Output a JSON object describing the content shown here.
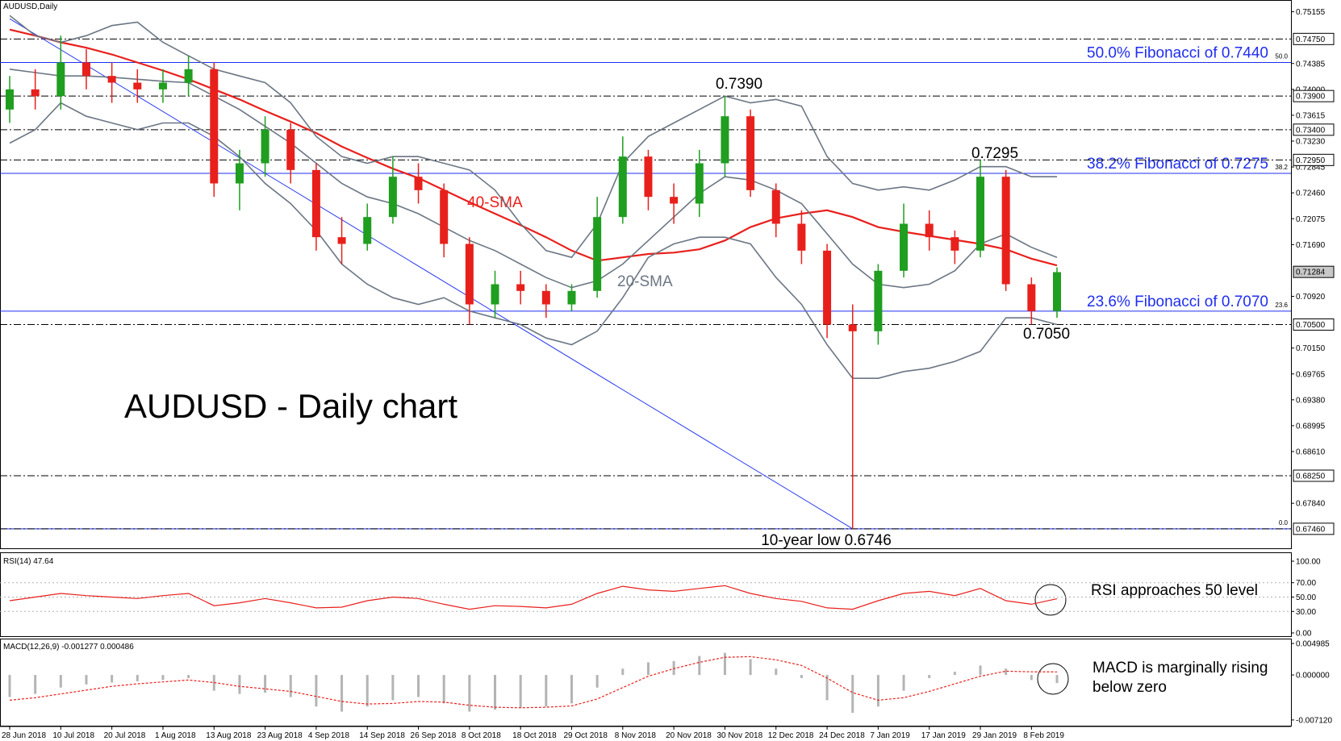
{
  "chart_data": {
    "type": "candlestick",
    "title": "AUDUSD - Daily chart",
    "symbol": "AUDUSD,Daily",
    "categories": [
      "28 Jun 2018",
      null,
      "10 Jul 2018",
      null,
      "20 Jul 2018",
      null,
      "1 Aug 2018",
      null,
      "13 Aug 2018",
      null,
      "23 Aug 2018",
      null,
      "4 Sep 2018",
      null,
      "14 Sep 2018",
      null,
      "26 Sep 2018",
      null,
      "8 Oct 2018",
      null,
      "18 Oct 2018",
      null,
      "29 Oct 2018",
      null,
      "8 Nov 2018",
      null,
      "20 Nov 2018",
      null,
      "30 Nov 2018",
      null,
      "12 Dec 2018",
      null,
      "24 Dec 2018",
      null,
      "7 Jan 2019",
      null,
      "17 Jan 2019",
      null,
      "29 Jan 2019",
      null,
      "8 Feb 2019",
      null
    ],
    "candles": {
      "open": [
        0.737,
        0.74,
        0.739,
        0.744,
        0.742,
        0.741,
        0.74,
        0.741,
        0.743,
        0.726,
        0.729,
        0.734,
        0.728,
        0.718,
        0.717,
        0.721,
        0.727,
        0.725,
        0.717,
        0.708,
        0.711,
        0.71,
        0.708,
        0.71,
        0.721,
        0.73,
        0.724,
        0.723,
        0.729,
        0.736,
        0.725,
        0.72,
        0.716,
        0.705,
        0.704,
        0.713,
        0.72,
        0.718,
        0.716,
        0.727,
        0.711,
        0.707
      ],
      "high": [
        0.742,
        0.743,
        0.748,
        0.746,
        0.744,
        0.743,
        0.743,
        0.745,
        0.744,
        0.731,
        0.736,
        0.735,
        0.729,
        0.721,
        0.723,
        0.73,
        0.729,
        0.726,
        0.718,
        0.713,
        0.713,
        0.711,
        0.711,
        0.724,
        0.733,
        0.731,
        0.726,
        0.731,
        0.739,
        0.737,
        0.726,
        0.722,
        0.717,
        0.708,
        0.714,
        0.723,
        0.722,
        0.719,
        0.7295,
        0.728,
        0.712,
        0.7135
      ],
      "low": [
        0.735,
        0.737,
        0.737,
        0.74,
        0.738,
        0.738,
        0.738,
        0.739,
        0.724,
        0.722,
        0.727,
        0.726,
        0.716,
        0.714,
        0.716,
        0.72,
        0.723,
        0.715,
        0.705,
        0.706,
        0.708,
        0.706,
        0.707,
        0.709,
        0.72,
        0.722,
        0.72,
        0.721,
        0.727,
        0.724,
        0.718,
        0.714,
        0.703,
        0.6746,
        0.702,
        0.712,
        0.716,
        0.714,
        0.715,
        0.71,
        0.705,
        0.706
      ],
      "close": [
        0.74,
        0.739,
        0.744,
        0.742,
        0.741,
        0.74,
        0.741,
        0.743,
        0.726,
        0.729,
        0.734,
        0.728,
        0.718,
        0.717,
        0.721,
        0.727,
        0.725,
        0.717,
        0.708,
        0.711,
        0.71,
        0.708,
        0.71,
        0.721,
        0.73,
        0.724,
        0.723,
        0.729,
        0.736,
        0.725,
        0.72,
        0.716,
        0.705,
        0.704,
        0.713,
        0.72,
        0.718,
        0.716,
        0.727,
        0.711,
        0.707,
        0.7128
      ]
    },
    "up_color": "#1f9e1f",
    "down_color": "#e8201c",
    "overlays": [
      {
        "name": "40-SMA",
        "color": "#e8201c",
        "values": [
          0.7489,
          0.748,
          0.747,
          0.7462,
          0.7452,
          0.744,
          0.7428,
          0.7415,
          0.74,
          0.7385,
          0.7368,
          0.7352,
          0.7335,
          0.7315,
          0.7298,
          0.7282,
          0.7268,
          0.725,
          0.7232,
          0.7215,
          0.7198,
          0.718,
          0.716,
          0.7145,
          0.715,
          0.7155,
          0.7157,
          0.7162,
          0.7175,
          0.7195,
          0.7208,
          0.7215,
          0.722,
          0.721,
          0.7195,
          0.7188,
          0.7182,
          0.7176,
          0.717,
          0.7162,
          0.7148,
          0.7138
        ]
      },
      {
        "name": "20-SMA",
        "color": "#6b7684",
        "values": [
          0.743,
          0.7425,
          0.742,
          0.742,
          0.7418,
          0.7415,
          0.7412,
          0.741,
          0.739,
          0.737,
          0.7345,
          0.732,
          0.729,
          0.726,
          0.724,
          0.723,
          0.7215,
          0.7195,
          0.7175,
          0.716,
          0.714,
          0.712,
          0.7105,
          0.7115,
          0.714,
          0.7175,
          0.721,
          0.7245,
          0.727,
          0.7265,
          0.725,
          0.723,
          0.7185,
          0.714,
          0.711,
          0.7105,
          0.711,
          0.713,
          0.717,
          0.7185,
          0.7165,
          0.715
        ]
      },
      {
        "color": "#6b7684",
        "values": [
          0.751,
          0.748,
          0.747,
          0.748,
          0.7495,
          0.75,
          0.747,
          0.745,
          0.743,
          0.742,
          0.741,
          0.738,
          0.733,
          0.73,
          0.729,
          0.73,
          0.73,
          0.729,
          0.728,
          0.725,
          0.72,
          0.716,
          0.715,
          0.72,
          0.729,
          0.733,
          0.735,
          0.737,
          0.739,
          0.738,
          0.7385,
          0.7375,
          0.73,
          0.726,
          0.725,
          0.7255,
          0.725,
          0.7265,
          0.7285,
          0.7285,
          0.727,
          0.727
        ]
      },
      {
        "color": "#6b7684",
        "values": [
          0.732,
          0.734,
          0.738,
          0.736,
          0.735,
          0.734,
          0.735,
          0.735,
          0.733,
          0.73,
          0.726,
          0.723,
          0.719,
          0.714,
          0.711,
          0.709,
          0.708,
          0.709,
          0.707,
          0.706,
          0.705,
          0.703,
          0.702,
          0.704,
          0.709,
          0.715,
          0.717,
          0.718,
          0.718,
          0.717,
          0.712,
          0.708,
          0.702,
          0.697,
          0.697,
          0.698,
          0.6985,
          0.6995,
          0.701,
          0.706,
          0.706,
          0.705
        ]
      }
    ],
    "trendline": {
      "x": [
        0,
        33
      ],
      "y": [
        0.7505,
        0.6746
      ],
      "color": "#2a3cf0"
    },
    "ylim": [
      0.6717,
      0.7533
    ],
    "yticks": [
      0.75155,
      0.74385,
      {
        "value": 0.74,
        "label": "0.74000"
      },
      0.73615,
      {
        "value": 0.7323,
        "label": "0.73230"
      },
      0.72845,
      {
        "value": 0.7246,
        "label": "0.72460"
      },
      0.72075,
      {
        "value": 0.7169,
        "label": "0.71690"
      },
      {
        "value": 0.7092,
        "label": "0.70920"
      },
      {
        "value": 0.7015,
        "label": "0.70150"
      },
      0.69765,
      {
        "value": 0.6938,
        "label": "0.69380"
      },
      0.68995,
      {
        "value": 0.6861,
        "label": "0.68610"
      },
      {
        "value": 0.6784,
        "label": "0.67840"
      }
    ],
    "levels": [
      {
        "value": 0.7475,
        "label": "0.74750"
      },
      {
        "value": 0.739,
        "label": "0.73900"
      },
      {
        "value": 0.734,
        "label": "0.73400"
      },
      {
        "value": 0.7295,
        "label": "0.72950"
      },
      {
        "value": 0.705,
        "label": "0.70500"
      },
      {
        "value": 0.6825,
        "label": "0.68250"
      },
      {
        "value": 0.6746,
        "label": "0.67460"
      }
    ],
    "last_price": {
      "value": 0.71284,
      "label": "0.71284"
    },
    "fib": [
      {
        "value": 0.744,
        "level": "50.0",
        "text": "50.0% Fibonacci of 0.7440"
      },
      {
        "value": 0.7275,
        "level": "38.2",
        "text": "38.2% Fibonacci of 0.7275"
      },
      {
        "value": 0.707,
        "level": "23.6",
        "text": "23.6% Fibonacci of 0.7070"
      },
      {
        "value": 0.6746,
        "level": "0.0"
      }
    ],
    "fib_color": "#1f2ef0",
    "annotations": [
      "0.7390",
      "0.7295",
      "0.7050",
      "10-year low 0.6746"
    ],
    "rsi": {
      "title": "RSI(14) 47.64",
      "color": "#e8201c",
      "values": [
        45,
        50,
        55,
        52,
        50,
        48,
        52,
        55,
        38,
        42,
        48,
        42,
        35,
        36,
        45,
        50,
        48,
        40,
        33,
        38,
        37,
        35,
        40,
        55,
        65,
        60,
        58,
        62,
        66,
        55,
        48,
        44,
        35,
        33,
        45,
        55,
        58,
        52,
        62,
        45,
        40,
        47.64
      ],
      "ylim": [
        0,
        100
      ],
      "yticks": [
        {
          "value": 100,
          "label": "100.00"
        },
        {
          "value": 70,
          "label": "70.00"
        },
        {
          "value": 50,
          "label": "50.00"
        },
        {
          "value": 30,
          "label": "30.00"
        },
        {
          "value": 0,
          "label": "0.00"
        }
      ],
      "grid": true,
      "note": "RSI approaches 50 level"
    },
    "macd": {
      "title": "MACD(12,26,9) -0.001277 0.000486",
      "hist_color": "#b4b4b4",
      "signal_color": "#e8201c",
      "histogram": [
        -0.0035,
        -0.003,
        -0.002,
        -0.0015,
        -0.0012,
        -0.001,
        -0.0008,
        -0.0005,
        -0.0025,
        -0.003,
        -0.0028,
        -0.0035,
        -0.005,
        -0.0058,
        -0.005,
        -0.004,
        -0.0035,
        -0.0045,
        -0.0058,
        -0.0055,
        -0.0052,
        -0.005,
        -0.0045,
        -0.002,
        0.001,
        0.002,
        0.0022,
        0.003,
        0.0035,
        0.0025,
        0.001,
        -0.0005,
        -0.004,
        -0.006,
        -0.005,
        -0.0025,
        -0.0005,
        0.0005,
        0.0015,
        0.001,
        -0.0008,
        -0.001277
      ],
      "signal": [
        -0.004,
        -0.0036,
        -0.003,
        -0.0024,
        -0.0018,
        -0.0014,
        -0.0011,
        -0.0008,
        -0.0012,
        -0.0018,
        -0.0022,
        -0.0026,
        -0.0034,
        -0.0042,
        -0.0046,
        -0.0045,
        -0.0042,
        -0.0043,
        -0.0048,
        -0.0051,
        -0.0052,
        -0.0051,
        -0.0049,
        -0.0038,
        -0.002,
        -0.0002,
        0.001,
        0.002,
        0.0028,
        0.0029,
        0.0024,
        0.0015,
        -0.0005,
        -0.0028,
        -0.004,
        -0.0036,
        -0.0026,
        -0.0014,
        -0.0002,
        0.0006,
        0.0005,
        0.000486
      ],
      "ylim": [
        -0.0079,
        0.0055
      ],
      "yticks": [
        0.004985,
        {
          "value": 0,
          "label": "0.000000"
        },
        {
          "value": -0.00712,
          "label": "-0.007120"
        }
      ],
      "note": [
        "MACD is marginally rising",
        "below zero"
      ]
    }
  }
}
